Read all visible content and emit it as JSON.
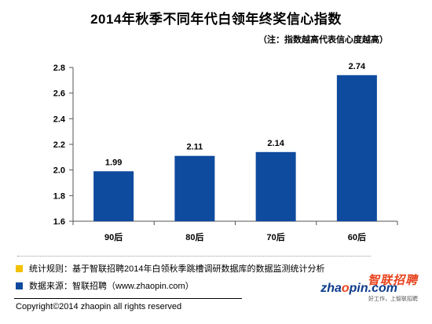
{
  "header": {
    "title": "2014年秋季不同年代白领年终奖信心指数",
    "note": "（注：指数越高代表信心度越高）"
  },
  "chart_data": {
    "type": "bar",
    "title": "2014年秋季不同年代白领年终奖信心指数",
    "subtitle": "（注：指数越高代表信心度越高）",
    "categories": [
      "90后",
      "80后",
      "70后",
      "60后"
    ],
    "values": [
      1.99,
      2.11,
      2.14,
      2.74
    ],
    "value_labels": [
      "1.99",
      "2.11",
      "2.14",
      "2.74"
    ],
    "ylim": [
      1.6,
      2.8
    ],
    "yticks": [
      1.6,
      1.8,
      2.0,
      2.2,
      2.4,
      2.6,
      2.8
    ],
    "ytick_labels": [
      "1.6",
      "1.8",
      "2.0",
      "2.2",
      "2.4",
      "2.6",
      "2.8"
    ],
    "xlabel": "",
    "ylabel": "",
    "grid": false,
    "bar_color": "#0e4a9e"
  },
  "legend": {
    "items": [
      {
        "color": "#f2c200",
        "text": "统计规则：基于智联招聘2014年白领秋季跳槽调研数据库的数据监测统计分析"
      },
      {
        "color": "#0e4a9e",
        "text": "数据来源：智联招聘（www.zhaopin.com）"
      }
    ]
  },
  "footer": {
    "copyright": "Copyright©2014 zhaopin all rights reserved"
  },
  "logo": {
    "cn": "智联招聘",
    "en_prefix": "zha",
    "en_o": "o",
    "en_suffix": "pin.com",
    "tagline": "好工作，上智联招聘"
  }
}
